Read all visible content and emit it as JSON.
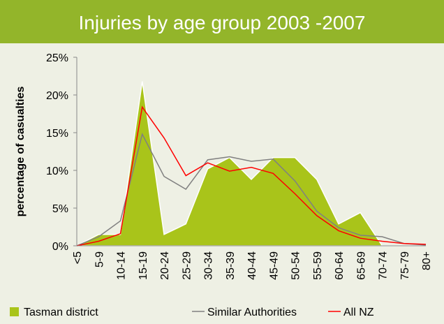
{
  "chart_data": {
    "type": "area",
    "title": "Injuries by age group 2003 -2007",
    "y_label": "percentage of casualties",
    "categories": [
      "<5",
      "5-9",
      "10-14",
      "15-19",
      "20-24",
      "25-29",
      "30-34",
      "35-39",
      "40-44",
      "45-49",
      "50-54",
      "55-59",
      "60-64",
      "65-69",
      "70-74",
      "75-79",
      "80+"
    ],
    "series": [
      {
        "name": "Tasman district",
        "type": "area",
        "color": "#a9c41a",
        "values": [
          0,
          1.5,
          1.5,
          21.8,
          1.5,
          2.9,
          10.2,
          11.7,
          8.8,
          11.7,
          11.7,
          8.8,
          2.9,
          4.4,
          0,
          0,
          0
        ]
      },
      {
        "name": "Similar Authorities",
        "type": "line",
        "color": "#808080",
        "values": [
          0,
          1.2,
          3.3,
          14.8,
          9.2,
          7.5,
          11.4,
          11.8,
          11.2,
          11.5,
          8.6,
          4.6,
          2.4,
          1.4,
          1.2,
          0.3,
          0.1
        ]
      },
      {
        "name": "All NZ",
        "type": "line",
        "color": "#ff0000",
        "values": [
          0,
          0.6,
          1.6,
          18.4,
          14.3,
          9.3,
          11.0,
          9.9,
          10.4,
          9.6,
          6.9,
          4.0,
          2.0,
          1.0,
          0.6,
          0.3,
          0.2
        ]
      }
    ],
    "ylim": [
      0,
      25
    ],
    "yticks": [
      {
        "value": 0,
        "label": "0%"
      },
      {
        "value": 5,
        "label": "5%"
      },
      {
        "value": 10,
        "label": "10%"
      },
      {
        "value": 15,
        "label": "15%"
      },
      {
        "value": 20,
        "label": "20%"
      },
      {
        "value": 25,
        "label": "25%"
      }
    ],
    "grid": false,
    "legend": "bottom"
  }
}
